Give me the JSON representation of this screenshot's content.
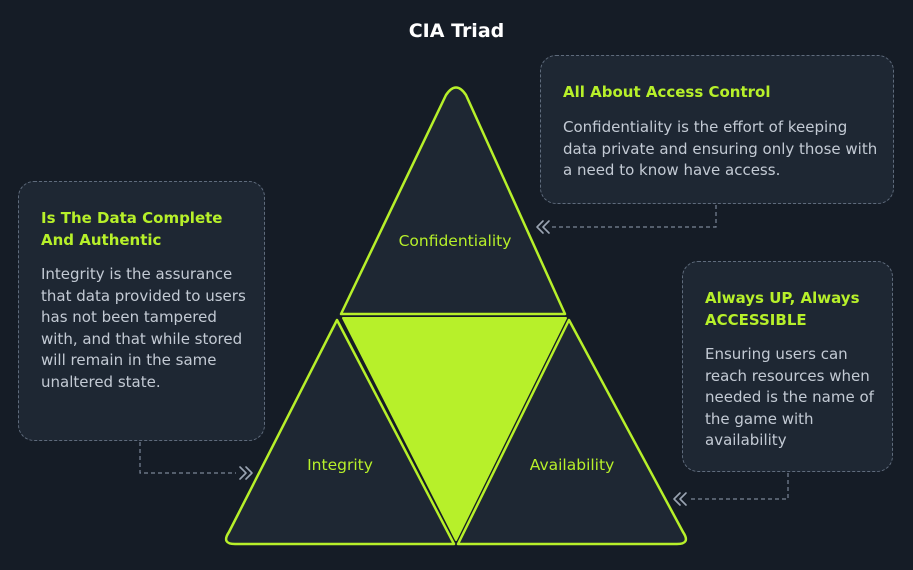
{
  "title": "CIA Triad",
  "triangle": {
    "top_label": "Confidentiality",
    "left_label": "Integrity",
    "right_label": "Availability"
  },
  "cards": {
    "confidentiality": {
      "title": "All About Access Control",
      "body": "Confidentiality is the effort of keeping data private and ensuring only those with a need to know have access."
    },
    "integrity": {
      "title": "Is The Data Complete And Authentic",
      "body": "Integrity is the assurance that data provided to users has not been tampered with, and that while stored will remain in the same unaltered state."
    },
    "availability": {
      "title": "Always UP, Always ACCESSIBLE",
      "body": "Ensuring users can reach resources when needed is the name of the game with availability"
    }
  },
  "colors": {
    "background": "#151c26",
    "accent": "#b7f02a",
    "card_background": "#1e2733",
    "body_text": "#c3cad4"
  }
}
